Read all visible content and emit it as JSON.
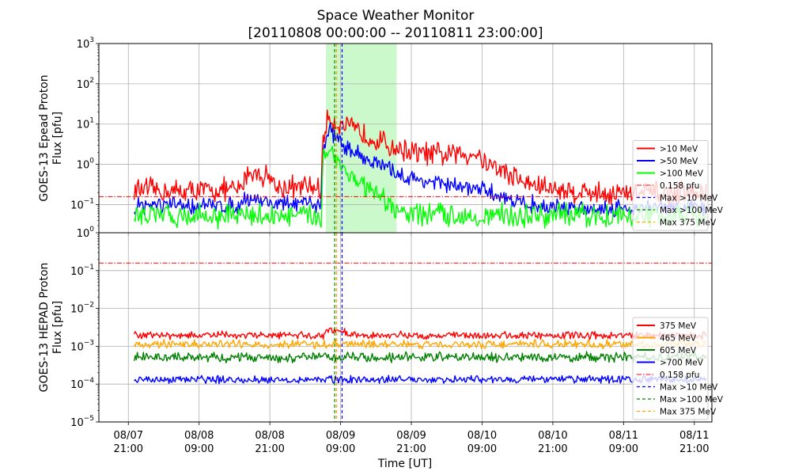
{
  "chart_data": [
    {
      "type": "line",
      "id": "top",
      "ylabel_lines": [
        "GOES-13 Epead Proton",
        "Flux [pfu]"
      ],
      "yscale": "log",
      "ylim": [
        0.02,
        1000
      ],
      "ytick_exponents": [
        -1,
        0,
        1,
        2,
        3
      ],
      "grid": true,
      "legend_loc": "lower right",
      "shade": {
        "from": "2011-08-09T06:30",
        "to": "2011-08-09T18:30",
        "color": "#ccf9cc"
      },
      "series": [
        {
          "name": ">10 MeV",
          "color": "#ff0000",
          "kind": "flux",
          "x": [
            "2011-08-07T22:00",
            "2011-08-08T05:00",
            "2011-08-08T16:00",
            "2011-08-08T17:00",
            "2011-08-08T21:00",
            "2011-08-08T22:00",
            "2011-08-09T05:45",
            "2011-08-09T06:00",
            "2011-08-09T07:00",
            "2011-08-09T09:00",
            "2011-08-09T15:00",
            "2011-08-09T18:00",
            "2011-08-09T22:00",
            "2011-08-10T02:00",
            "2011-08-10T08:00",
            "2011-08-10T10:00",
            "2011-08-10T17:00",
            "2011-08-11T00:00",
            "2011-08-11T09:00",
            "2011-08-11T23:00"
          ],
          "y": [
            0.22,
            0.2,
            0.22,
            0.6,
            0.5,
            0.25,
            0.25,
            4,
            14,
            9,
            4,
            2.5,
            1.8,
            1.6,
            1.8,
            1,
            0.3,
            0.2,
            0.18,
            0.17
          ],
          "noise": 0.35
        },
        {
          "name": ">50 MeV",
          "color": "#0000ff",
          "kind": "flux",
          "x": [
            "2011-08-07T22:00",
            "2011-08-08T16:00",
            "2011-08-08T17:00",
            "2011-08-08T22:00",
            "2011-08-09T05:45",
            "2011-08-09T06:00",
            "2011-08-09T07:00",
            "2011-08-09T10:00",
            "2011-08-09T14:00",
            "2011-08-09T20:00",
            "2011-08-10T03:00",
            "2011-08-10T10:00",
            "2011-08-10T14:00",
            "2011-08-10T20:00",
            "2011-08-11T23:00"
          ],
          "y": [
            0.09,
            0.09,
            0.15,
            0.1,
            0.1,
            2,
            7,
            2.5,
            1.2,
            0.45,
            0.3,
            0.2,
            0.13,
            0.08,
            0.08
          ],
          "noise": 0.25
        },
        {
          "name": ">100 MeV",
          "color": "#00ff00",
          "kind": "flux",
          "x": [
            "2011-08-07T22:00",
            "2011-08-09T05:45",
            "2011-08-09T06:00",
            "2011-08-09T07:00",
            "2011-08-09T10:00",
            "2011-08-09T15:00",
            "2011-08-09T19:00",
            "2011-08-10T06:00",
            "2011-08-11T23:00"
          ],
          "y": [
            0.05,
            0.05,
            1.5,
            2.5,
            0.6,
            0.15,
            0.06,
            0.05,
            0.05
          ],
          "noise": 0.35
        },
        {
          "name": "0.158 pfu",
          "color": "#ff0000",
          "kind": "hline",
          "value": 0.158
        },
        {
          "name": "Max >10 MeV",
          "color": "#0000ff",
          "kind": "vline",
          "at": "2011-08-09T09:15"
        },
        {
          "name": "Max >100 MeV",
          "color": "#008000",
          "kind": "vline",
          "at": "2011-08-09T08:00"
        },
        {
          "name": "Max 375 MeV",
          "color": "#ffa500",
          "kind": "vline",
          "at": "2011-08-09T08:20"
        }
      ]
    },
    {
      "type": "line",
      "id": "bottom",
      "ylabel_lines": [
        "GOES-13 HEPAD Proton",
        "Flux [pfu]"
      ],
      "yscale": "log",
      "ylim": [
        1e-05,
        1
      ],
      "ytick_exponents": [
        -5,
        -4,
        -3,
        -2,
        -1,
        0
      ],
      "grid": true,
      "legend_loc": "lower right",
      "series": [
        {
          "name": "375 MeV",
          "color": "#ff0000",
          "kind": "flux",
          "x": [
            "2011-08-07T22:00",
            "2011-08-09T06:00",
            "2011-08-09T07:00",
            "2011-08-09T12:00",
            "2011-08-11T23:00"
          ],
          "y": [
            0.0019,
            0.0019,
            0.0027,
            0.0019,
            0.0019
          ],
          "noise": 0.12
        },
        {
          "name": "465 MeV",
          "color": "#ffa500",
          "kind": "flux",
          "x": [
            "2011-08-07T22:00",
            "2011-08-11T23:00"
          ],
          "y": [
            0.0011,
            0.0011
          ],
          "noise": 0.13
        },
        {
          "name": "605 MeV",
          "color": "#008000",
          "kind": "flux",
          "x": [
            "2011-08-07T22:00",
            "2011-08-11T23:00"
          ],
          "y": [
            0.0005,
            0.0005
          ],
          "noise": 0.16
        },
        {
          "name": ">700 MeV",
          "color": "#0000ff",
          "kind": "flux",
          "x": [
            "2011-08-07T22:00",
            "2011-08-11T23:00"
          ],
          "y": [
            0.00013,
            0.00013
          ],
          "noise": 0.12
        },
        {
          "name": "0.158 pfu",
          "color": "#ff0000",
          "kind": "hline",
          "value": 0.158
        },
        {
          "name": "Max >10 MeV",
          "color": "#0000ff",
          "kind": "vline",
          "at": "2011-08-09T09:15"
        },
        {
          "name": "Max >100 MeV",
          "color": "#008000",
          "kind": "vline",
          "at": "2011-08-09T08:00"
        },
        {
          "name": "Max 375 MeV",
          "color": "#ffa500",
          "kind": "vline",
          "at": "2011-08-09T08:20"
        }
      ]
    }
  ],
  "figure": {
    "title_lines": [
      "Space Weather Monitor",
      "[20110808 00:00:00 -- 20110811 23:00:00]"
    ],
    "xlabel": "Time [UT]",
    "xlim": [
      "2011-08-07T16:00",
      "2011-08-11T23:59"
    ],
    "xticks": [
      {
        "at": "2011-08-07T21:00",
        "date": "08/07",
        "time": "21:00"
      },
      {
        "at": "2011-08-08T09:00",
        "date": "08/08",
        "time": "09:00"
      },
      {
        "at": "2011-08-08T21:00",
        "date": "08/08",
        "time": "21:00"
      },
      {
        "at": "2011-08-09T09:00",
        "date": "08/09",
        "time": "09:00"
      },
      {
        "at": "2011-08-09T21:00",
        "date": "08/09",
        "time": "21:00"
      },
      {
        "at": "2011-08-10T09:00",
        "date": "08/10",
        "time": "09:00"
      },
      {
        "at": "2011-08-10T21:00",
        "date": "08/10",
        "time": "21:00"
      },
      {
        "at": "2011-08-11T09:00",
        "date": "08/11",
        "time": "09:00"
      },
      {
        "at": "2011-08-11T21:00",
        "date": "08/11",
        "time": "21:00"
      }
    ]
  }
}
